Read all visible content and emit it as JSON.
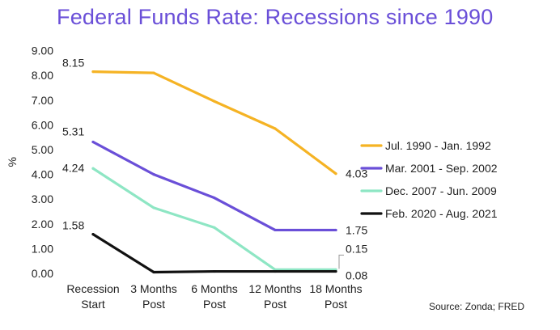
{
  "chart_data": {
    "type": "line",
    "title": "Federal Funds Rate: Recessions since 1990",
    "ylabel": "%",
    "xlabel": "",
    "ylim": [
      0,
      9
    ],
    "yticks": [
      "0.00",
      "1.00",
      "2.00",
      "3.00",
      "4.00",
      "5.00",
      "6.00",
      "7.00",
      "8.00",
      "9.00"
    ],
    "categories": [
      [
        "Recession",
        "Start"
      ],
      [
        "3 Months",
        "Post"
      ],
      [
        "6 Months",
        "Post"
      ],
      [
        "12 Months",
        "Post"
      ],
      [
        "18 Months",
        "Post"
      ]
    ],
    "grid": false,
    "legend_position": "right",
    "series": [
      {
        "name": "Jul. 1990 - Jan. 1992",
        "color": "#f5b324",
        "values": [
          8.15,
          8.1,
          6.95,
          5.85,
          4.03
        ]
      },
      {
        "name": "Mar. 2001 - Sep. 2002",
        "color": "#6a4fd8",
        "values": [
          5.31,
          4.0,
          3.05,
          1.75,
          1.75
        ]
      },
      {
        "name": "Dec. 2007 - Jun. 2009",
        "color": "#8ee6c4",
        "values": [
          4.24,
          2.65,
          1.85,
          0.15,
          0.15
        ]
      },
      {
        "name": "Feb. 2020 - Aug. 2021",
        "color": "#111111",
        "values": [
          1.58,
          0.05,
          0.08,
          0.08,
          0.08
        ]
      }
    ],
    "annotations": [
      {
        "text": "8.15",
        "series": 0,
        "point": 0
      },
      {
        "text": "5.31",
        "series": 1,
        "point": 0
      },
      {
        "text": "4.24",
        "series": 2,
        "point": 0
      },
      {
        "text": "1.58",
        "series": 3,
        "point": 0
      },
      {
        "text": "4.03",
        "series": 0,
        "point": 4
      },
      {
        "text": "1.75",
        "series": 1,
        "point": 4
      },
      {
        "text": "0.15",
        "series": 2,
        "point": 4
      },
      {
        "text": "0.08",
        "series": 3,
        "point": 4
      }
    ],
    "source": "Source: Zonda; FRED"
  }
}
